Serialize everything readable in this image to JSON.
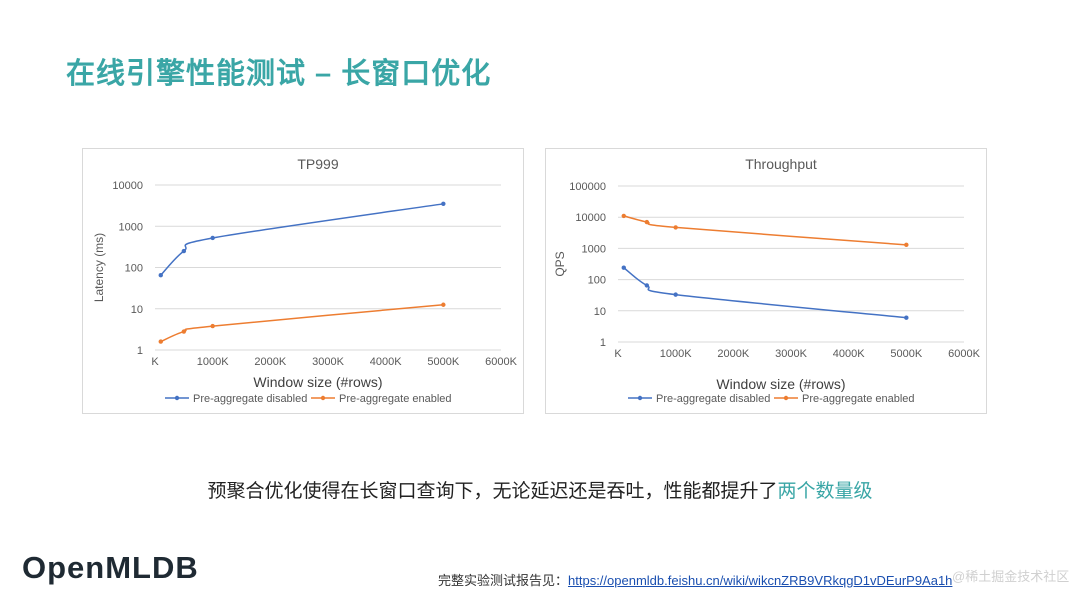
{
  "slide": {
    "title": "在线引擎性能测试 – 长窗口优化",
    "summary_main": "预聚合优化使得在长窗口查询下，无论延迟还是吞吐，性能都提升了",
    "summary_highlight": "两个数量级",
    "logo": "OpenMLDB",
    "report_label": "完整实验测试报告见：",
    "report_link": "https://openmldb.feishu.cn/wiki/wikcnZRB9VRkqgD1vDEurP9Aa1h",
    "watermark": "@稀土掘金技术社区"
  },
  "colors": {
    "accent": "#3aa6a6",
    "series_disabled": "#4472c4",
    "series_enabled": "#ed7d31"
  },
  "chart_data": [
    {
      "type": "line",
      "title": "TP999",
      "xlabel": "Window size (#rows)",
      "ylabel": "Latency (ms)",
      "yscale": "log",
      "ylim": [
        1,
        10000
      ],
      "xlim": [
        0,
        6000
      ],
      "x_ticks": [
        0,
        1000,
        2000,
        3000,
        4000,
        5000,
        6000
      ],
      "x_tick_labels": [
        "K",
        "1000K",
        "2000K",
        "3000K",
        "4000K",
        "5000K",
        "6000K"
      ],
      "y_ticks": [
        1,
        10,
        100,
        1000,
        10000
      ],
      "y_tick_labels": [
        "1",
        "10",
        "100",
        "1000",
        "10000"
      ],
      "legend_position": "bottom",
      "series": [
        {
          "name": "Pre-aggregate disabled",
          "color": "#4472c4",
          "x": [
            100,
            500,
            1000,
            5000
          ],
          "values": [
            65,
            250,
            520,
            3500
          ]
        },
        {
          "name": "Pre-aggregate enabled",
          "color": "#ed7d31",
          "x": [
            100,
            500,
            1000,
            5000
          ],
          "values": [
            1.6,
            2.8,
            3.8,
            12.5
          ]
        }
      ]
    },
    {
      "type": "line",
      "title": "Throughput",
      "xlabel": "Window size (#rows)",
      "ylabel": "QPS",
      "yscale": "log",
      "ylim": [
        1,
        100000
      ],
      "xlim": [
        0,
        6000
      ],
      "x_ticks": [
        0,
        1000,
        2000,
        3000,
        4000,
        5000,
        6000
      ],
      "x_tick_labels": [
        "K",
        "1000K",
        "2000K",
        "3000K",
        "4000K",
        "5000K",
        "6000K"
      ],
      "y_ticks": [
        1,
        10,
        100,
        1000,
        10000,
        100000
      ],
      "y_tick_labels": [
        "1",
        "10",
        "100",
        "1000",
        "10000",
        "100000"
      ],
      "legend_position": "bottom",
      "series": [
        {
          "name": "Pre-aggregate disabled",
          "color": "#4472c4",
          "x": [
            100,
            500,
            1000,
            5000
          ],
          "values": [
            240,
            65,
            33,
            6
          ]
        },
        {
          "name": "Pre-aggregate enabled",
          "color": "#ed7d31",
          "x": [
            100,
            500,
            1000,
            5000
          ],
          "values": [
            11000,
            7000,
            4700,
            1300
          ]
        }
      ]
    }
  ]
}
